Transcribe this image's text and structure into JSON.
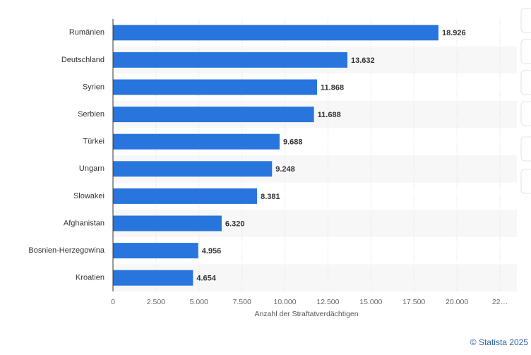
{
  "chart_data": {
    "type": "bar",
    "orientation": "horizontal",
    "categories": [
      "Rumänien",
      "Deutschland",
      "Syrien",
      "Serbien",
      "Türkei",
      "Ungarn",
      "Slowakei",
      "Afghanistan",
      "Bosnien-Herzegowina",
      "Kroatien"
    ],
    "values": [
      18926,
      13632,
      11868,
      11688,
      9688,
      9248,
      8381,
      6320,
      4956,
      4654
    ],
    "value_labels": [
      "18.926",
      "13.632",
      "11.868",
      "11.688",
      "9.688",
      "9.248",
      "8.381",
      "6.320",
      "4.956",
      "4.654"
    ],
    "color": "#2876dd",
    "xlim": [
      0,
      22500
    ],
    "xticks": [
      0,
      {
        "value": 2500,
        "label": "2.500"
      },
      {
        "value": 5000,
        "label": "5.000"
      },
      {
        "value": 7500,
        "label": "7.500"
      },
      {
        "value": 10000,
        "label": "10.000"
      },
      {
        "value": 12500,
        "label": "12.500"
      },
      {
        "value": 15000,
        "label": "15.000"
      },
      {
        "value": 17500,
        "label": "17.500"
      },
      {
        "value": 20000,
        "label": "20.000"
      },
      {
        "value": 22500,
        "label": "22…"
      }
    ],
    "xlabel": "Anzahl der Straftatverdächtigen",
    "grid": true,
    "source": "© Statista 2025"
  }
}
